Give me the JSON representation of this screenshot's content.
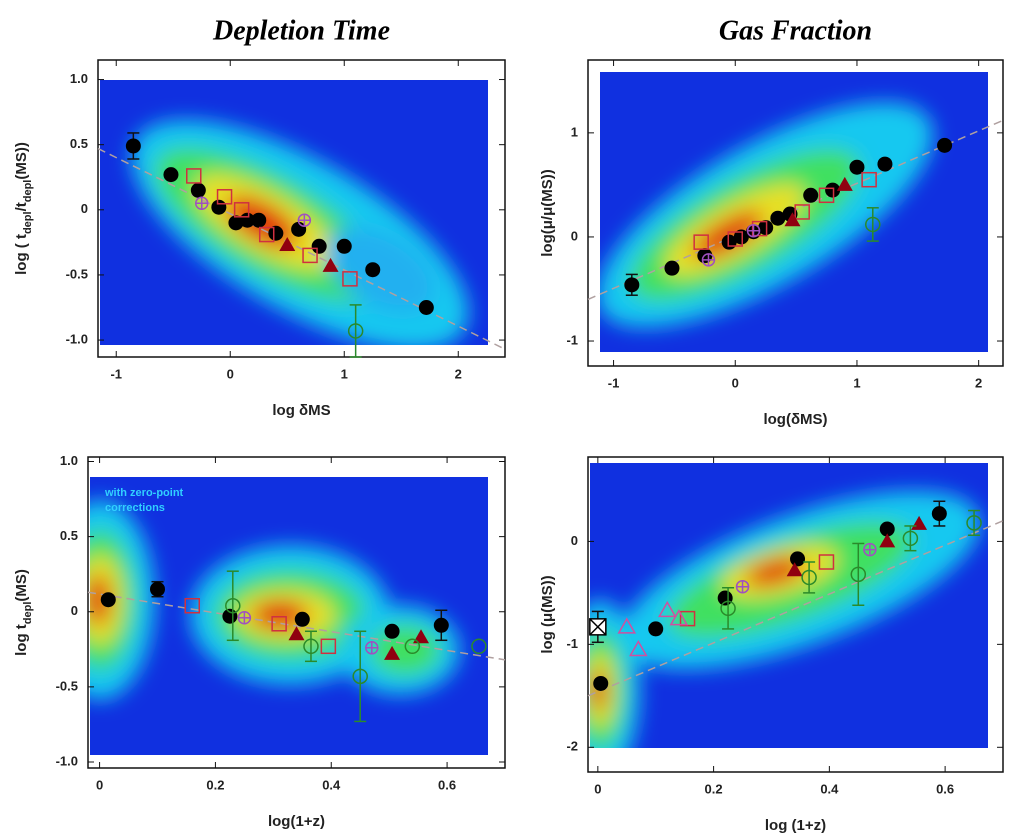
{
  "chart_data": [
    {
      "type": "scatter",
      "title": "Depletion Time",
      "xlabel": "log δMS",
      "ylabel": [
        "log ( t",
        "depl",
        "/t",
        "depl",
        "(MS))"
      ],
      "xlim": [
        -1.16,
        2.41
      ],
      "ylim": [
        -1.13,
        1.15
      ],
      "xticks": [
        -1,
        0,
        1,
        2
      ],
      "yticks": [
        {
          "value": 1,
          "label": "1.0"
        },
        0.5,
        0,
        -0.5,
        {
          "value": -1,
          "label": "-1.0"
        }
      ],
      "fit": {
        "color": "#b0a0a0",
        "x": [
          -1.16,
          2.41
        ],
        "y": [
          0.47,
          -1.07
        ]
      },
      "series": [
        {
          "marker": "filled-circle",
          "color": "#000000",
          "x": [
            -0.85,
            -0.52,
            -0.28,
            -0.1,
            0.05,
            0.15,
            0.25,
            0.4,
            0.6,
            0.78,
            1.0,
            1.25,
            1.72
          ],
          "y": [
            0.49,
            0.27,
            0.15,
            0.02,
            -0.1,
            -0.08,
            -0.08,
            -0.18,
            -0.15,
            -0.28,
            -0.28,
            -0.46,
            -0.75
          ],
          "yerr": [
            0.1,
            null,
            null,
            null,
            null,
            null,
            null,
            null,
            null,
            null,
            null,
            null,
            null
          ]
        },
        {
          "marker": "open-square",
          "color": "#d03040",
          "x": [
            -0.32,
            -0.05,
            0.1,
            0.32,
            0.7,
            1.05
          ],
          "y": [
            0.26,
            0.1,
            0.0,
            -0.19,
            -0.35,
            -0.53
          ]
        },
        {
          "marker": "filled-triangle",
          "color": "#900010",
          "x": [
            0.5,
            0.88
          ],
          "y": [
            -0.27,
            -0.43
          ]
        },
        {
          "marker": "crossed-circle",
          "color": "#a050c0",
          "x": [
            -0.25,
            0.65
          ],
          "y": [
            0.05,
            -0.08
          ]
        },
        {
          "marker": "open-circle",
          "color": "#2a8a2a",
          "x": [
            1.1
          ],
          "y": [
            -0.93
          ],
          "yerr": [
            0.2
          ]
        }
      ]
    },
    {
      "type": "scatter",
      "title": "Gas Fraction",
      "xlabel": "log(δMS)",
      "ylabel": [
        "log(μ/μ(MS))"
      ],
      "xlim": [
        -1.21,
        2.2
      ],
      "ylim": [
        -1.24,
        1.7
      ],
      "xticks": [
        -1,
        0,
        1,
        2
      ],
      "yticks": [
        1,
        0,
        -1
      ],
      "fit": {
        "color": "#b0a0a0",
        "x": [
          -1.21,
          2.2
        ],
        "y": [
          -0.6,
          1.12
        ]
      },
      "series": [
        {
          "marker": "filled-circle",
          "color": "#000000",
          "x": [
            -0.85,
            -0.52,
            -0.25,
            -0.05,
            0.05,
            0.15,
            0.25,
            0.35,
            0.45,
            0.62,
            0.8,
            1.0,
            1.23,
            1.72
          ],
          "y": [
            -0.46,
            -0.3,
            -0.18,
            -0.05,
            0.0,
            0.05,
            0.09,
            0.18,
            0.22,
            0.4,
            0.45,
            0.67,
            0.7,
            0.88
          ],
          "yerr": [
            0.1,
            null,
            null,
            null,
            null,
            null,
            null,
            null,
            null,
            null,
            null,
            null,
            null,
            null
          ]
        },
        {
          "marker": "open-square",
          "color": "#d03040",
          "x": [
            -0.28,
            0.0,
            0.2,
            0.55,
            0.75,
            1.1
          ],
          "y": [
            -0.05,
            -0.02,
            0.08,
            0.24,
            0.4,
            0.55
          ]
        },
        {
          "marker": "filled-triangle",
          "color": "#900010",
          "x": [
            0.47,
            0.9
          ],
          "y": [
            0.16,
            0.5
          ]
        },
        {
          "marker": "crossed-circle",
          "color": "#a050c0",
          "x": [
            -0.22,
            0.15
          ],
          "y": [
            -0.22,
            0.06
          ]
        },
        {
          "marker": "open-circle",
          "color": "#2a8a2a",
          "x": [
            1.13
          ],
          "y": [
            0.12
          ],
          "yerr": [
            0.16
          ]
        }
      ]
    },
    {
      "type": "scatter",
      "xlabel": "log(1+z)",
      "ylabel": [
        "log t",
        "depl",
        "(MS)"
      ],
      "annotations": [
        "with zero-point",
        "corrections"
      ],
      "xlim": [
        -0.02,
        0.7
      ],
      "ylim": [
        -1.04,
        1.03
      ],
      "xticks": [
        0,
        0.2,
        0.4,
        0.6
      ],
      "yticks": [
        {
          "value": 1,
          "label": "1.0"
        },
        0.5,
        0,
        -0.5,
        {
          "value": -1,
          "label": "-1.0"
        }
      ],
      "fit": {
        "color": "#b0a0a0",
        "x": [
          -0.02,
          0.7
        ],
        "y": [
          0.13,
          -0.32
        ]
      },
      "series": [
        {
          "marker": "filled-circle",
          "color": "#000000",
          "x": [
            0.015,
            0.1,
            0.225,
            0.35,
            0.505,
            0.59
          ],
          "y": [
            0.08,
            0.15,
            -0.03,
            -0.05,
            -0.13,
            -0.09
          ],
          "yerr": [
            null,
            0.05,
            null,
            null,
            null,
            0.1
          ]
        },
        {
          "marker": "open-square",
          "color": "#d03040",
          "x": [
            0.16,
            0.31,
            0.395
          ],
          "y": [
            0.04,
            -0.08,
            -0.23
          ]
        },
        {
          "marker": "filled-triangle",
          "color": "#900010",
          "x": [
            0.34,
            0.505,
            0.555
          ],
          "y": [
            -0.15,
            -0.28,
            -0.17
          ]
        },
        {
          "marker": "crossed-circle",
          "color": "#a050c0",
          "x": [
            0.25,
            0.47
          ],
          "y": [
            -0.04,
            -0.24
          ]
        },
        {
          "marker": "open-circle",
          "color": "#2a8a2a",
          "x": [
            0.23,
            0.365,
            0.45,
            0.54,
            0.655
          ],
          "y": [
            0.04,
            -0.23,
            -0.43,
            -0.23,
            -0.23
          ],
          "yerr": [
            0.23,
            0.1,
            0.3,
            null,
            null
          ]
        }
      ]
    },
    {
      "type": "scatter",
      "xlabel": "log (1+z)",
      "ylabel": [
        "log (μ(MS))"
      ],
      "xlim": [
        -0.017,
        0.7
      ],
      "ylim": [
        -2.24,
        0.82
      ],
      "xticks": [
        0,
        0.2,
        0.4,
        0.6
      ],
      "yticks": [
        0,
        -1,
        -2
      ],
      "fit": {
        "color": "#b0a0a0",
        "x": [
          -0.017,
          0.7
        ],
        "y": [
          -1.5,
          0.2
        ]
      },
      "series": [
        {
          "marker": "filled-circle",
          "color": "#000000",
          "x": [
            0.005,
            0.1,
            0.22,
            0.345,
            0.5,
            0.59
          ],
          "y": [
            -1.38,
            -0.85,
            -0.55,
            -0.17,
            0.12,
            0.27
          ],
          "yerr": [
            null,
            null,
            null,
            null,
            null,
            0.12
          ]
        },
        {
          "marker": "open-square",
          "color": "#d03040",
          "x": [
            0.155,
            0.395
          ],
          "y": [
            -0.75,
            -0.2
          ]
        },
        {
          "marker": "filled-triangle",
          "color": "#900010",
          "x": [
            0.34,
            0.5,
            0.555
          ],
          "y": [
            -0.28,
            0.0,
            0.17
          ]
        },
        {
          "marker": "open-triangle",
          "color": "#d050a0",
          "x": [
            0.05,
            0.07,
            0.12,
            0.14
          ],
          "y": [
            -0.83,
            -1.05,
            -0.67,
            -0.75
          ]
        },
        {
          "marker": "crossed-circle",
          "color": "#a050c0",
          "x": [
            0.25,
            0.47
          ],
          "y": [
            -0.44,
            -0.08
          ]
        },
        {
          "marker": "open-circle",
          "color": "#2a8a2a",
          "x": [
            0.225,
            0.365,
            0.45,
            0.54,
            0.65
          ],
          "y": [
            -0.65,
            -0.35,
            -0.32,
            0.03,
            0.18
          ],
          "yerr": [
            0.2,
            0.15,
            0.3,
            0.12,
            0.12
          ]
        },
        {
          "marker": "crossed-square",
          "color": "#000000",
          "x": [
            0.0
          ],
          "y": [
            -0.83
          ],
          "yerr": [
            0.15
          ]
        }
      ]
    }
  ]
}
